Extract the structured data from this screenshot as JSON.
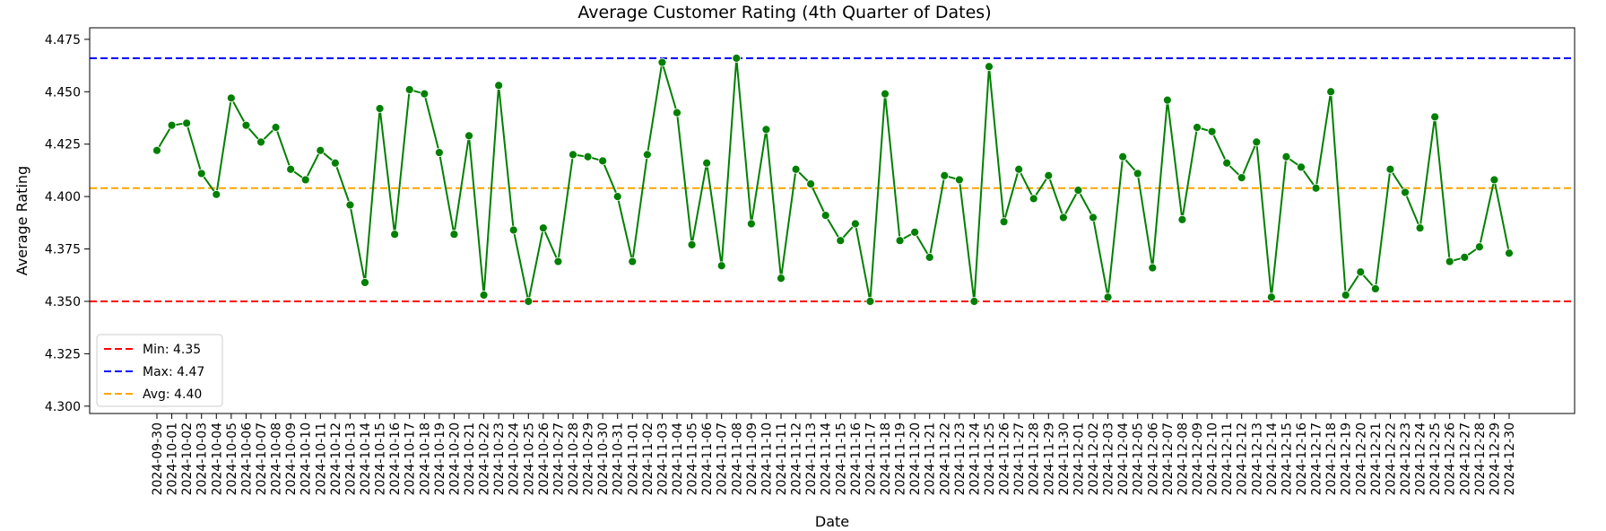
{
  "chart_data": {
    "type": "line",
    "title": "Average Customer Rating (4th Quarter of Dates)",
    "xlabel": "Date",
    "ylabel": "Average Rating",
    "ylim": [
      4.2965,
      4.4805
    ],
    "yticks": [
      4.3,
      4.325,
      4.35,
      4.375,
      4.4,
      4.425,
      4.45,
      4.475
    ],
    "grid": false,
    "legend_position": "lower-left",
    "x": [
      "2024-09-30",
      "2024-10-01",
      "2024-10-02",
      "2024-10-03",
      "2024-10-04",
      "2024-10-05",
      "2024-10-06",
      "2024-10-07",
      "2024-10-08",
      "2024-10-09",
      "2024-10-10",
      "2024-10-11",
      "2024-10-12",
      "2024-10-13",
      "2024-10-14",
      "2024-10-15",
      "2024-10-16",
      "2024-10-17",
      "2024-10-18",
      "2024-10-19",
      "2024-10-20",
      "2024-10-21",
      "2024-10-22",
      "2024-10-23",
      "2024-10-24",
      "2024-10-25",
      "2024-10-26",
      "2024-10-27",
      "2024-10-28",
      "2024-10-29",
      "2024-10-30",
      "2024-10-31",
      "2024-11-01",
      "2024-11-02",
      "2024-11-03",
      "2024-11-04",
      "2024-11-05",
      "2024-11-06",
      "2024-11-07",
      "2024-11-08",
      "2024-11-09",
      "2024-11-10",
      "2024-11-11",
      "2024-11-12",
      "2024-11-13",
      "2024-11-14",
      "2024-11-15",
      "2024-11-16",
      "2024-11-17",
      "2024-11-18",
      "2024-11-19",
      "2024-11-20",
      "2024-11-21",
      "2024-11-22",
      "2024-11-23",
      "2024-11-24",
      "2024-11-25",
      "2024-11-26",
      "2024-11-27",
      "2024-11-28",
      "2024-11-29",
      "2024-11-30",
      "2024-12-01",
      "2024-12-02",
      "2024-12-03",
      "2024-12-04",
      "2024-12-05",
      "2024-12-06",
      "2024-12-07",
      "2024-12-08",
      "2024-12-09",
      "2024-12-10",
      "2024-12-11",
      "2024-12-12",
      "2024-12-13",
      "2024-12-14",
      "2024-12-15",
      "2024-12-16",
      "2024-12-17",
      "2024-12-18",
      "2024-12-19",
      "2024-12-20",
      "2024-12-21",
      "2024-12-22",
      "2024-12-23",
      "2024-12-24",
      "2024-12-25",
      "2024-12-26",
      "2024-12-27",
      "2024-12-28",
      "2024-12-29",
      "2024-12-30"
    ],
    "series": [
      {
        "color": "#008000",
        "values": [
          4.422,
          4.434,
          4.435,
          4.411,
          4.401,
          4.447,
          4.434,
          4.426,
          4.433,
          4.413,
          4.408,
          4.422,
          4.416,
          4.396,
          4.359,
          4.442,
          4.382,
          4.451,
          4.449,
          4.421,
          4.382,
          4.429,
          4.353,
          4.453,
          4.384,
          4.35,
          4.385,
          4.369,
          4.42,
          4.419,
          4.417,
          4.4,
          4.369,
          4.42,
          4.464,
          4.44,
          4.377,
          4.416,
          4.367,
          4.466,
          4.387,
          4.432,
          4.361,
          4.413,
          4.406,
          4.391,
          4.379,
          4.387,
          4.35,
          4.449,
          4.379,
          4.383,
          4.371,
          4.41,
          4.408,
          4.35,
          4.462,
          4.388,
          4.413,
          4.399,
          4.41,
          4.39,
          4.403,
          4.39,
          4.352,
          4.419,
          4.411,
          4.366,
          4.446,
          4.389,
          4.433,
          4.431,
          4.416,
          4.409,
          4.426,
          4.352,
          4.419,
          4.414,
          4.404,
          4.45,
          4.353,
          4.364,
          4.356,
          4.413,
          4.402,
          4.385,
          4.438,
          4.369,
          4.371,
          4.376,
          4.408,
          4.373
        ]
      }
    ],
    "reference_lines": [
      {
        "name": "Min: 4.35",
        "value": 4.35,
        "color": "#ff0000"
      },
      {
        "name": "Max: 4.47",
        "value": 4.466,
        "color": "#0000ff"
      },
      {
        "name": "Avg: 4.40",
        "value": 4.404,
        "color": "#ffa500"
      }
    ]
  }
}
